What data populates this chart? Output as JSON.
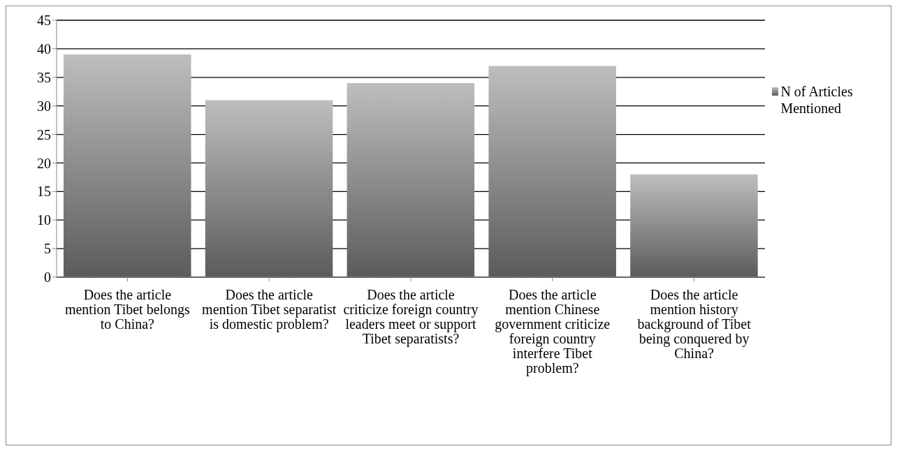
{
  "chart_data": {
    "type": "bar",
    "categories": [
      "Does the article mention Tibet belongs to China?",
      "Does the article mention Tibet separatist is domestic problem?",
      "Does the article criticize foreign country leaders meet or support Tibet separatists?",
      "Does the article mention Chinese government criticize foreign country interfere Tibet problem?",
      "Does the article mention history background of Tibet being conquered by China?"
    ],
    "series": [
      {
        "name": "N of Articles Mentioned",
        "color": "#929292",
        "values": [
          39,
          31,
          34,
          37,
          18
        ]
      }
    ],
    "ylim": [
      0,
      45
    ],
    "yticks": [
      0,
      5,
      10,
      15,
      20,
      25,
      30,
      35,
      40,
      45
    ],
    "grid": "y",
    "legend": "right"
  }
}
